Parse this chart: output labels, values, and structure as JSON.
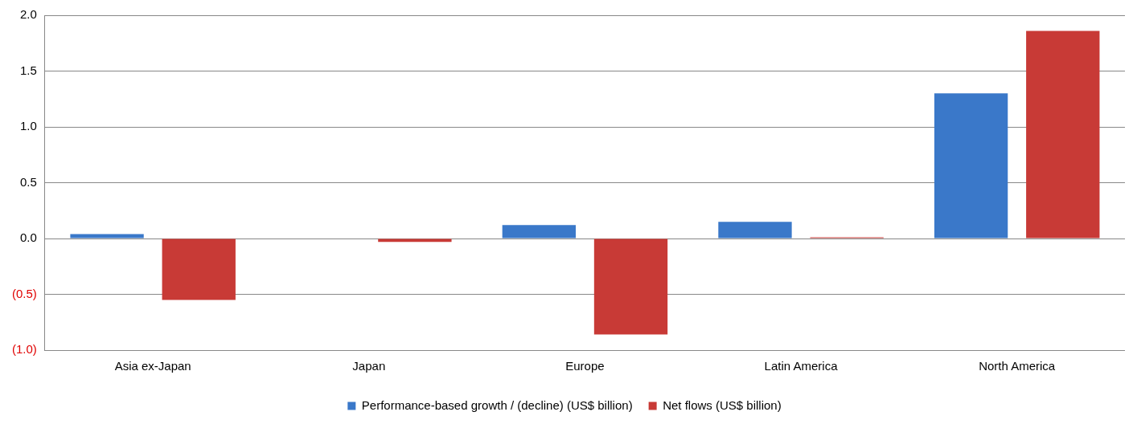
{
  "chart_data": {
    "type": "bar",
    "categories": [
      "Asia ex-Japan",
      "Japan",
      "Europe",
      "Latin America",
      "North America"
    ],
    "series": [
      {
        "name": "Performance-based growth / (decline) (US$ billion)",
        "color": "#3a78c9",
        "values": [
          0.04,
          0,
          0.12,
          0.15,
          1.3
        ]
      },
      {
        "name": "Net flows (US$ billion)",
        "color": "#c83a36",
        "values": [
          -0.55,
          -0.03,
          -0.86,
          0.01,
          1.86
        ]
      }
    ],
    "ylim": [
      -1,
      2
    ],
    "yticks": [
      {
        "value": -1,
        "label": "(1.0)"
      },
      {
        "value": -0.5,
        "label": "(0.5)"
      },
      {
        "value": 0,
        "label": "0.0"
      },
      {
        "value": 0.5,
        "label": "0.5"
      },
      {
        "value": 1,
        "label": "1.0"
      },
      {
        "value": 1.5,
        "label": "1.5"
      },
      {
        "value": 2,
        "label": "2.0"
      }
    ],
    "grid": "y",
    "legend": "bottom"
  }
}
